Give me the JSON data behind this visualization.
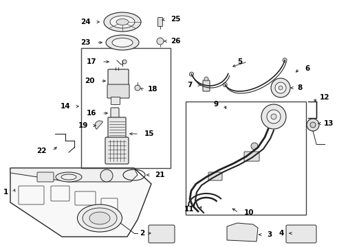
{
  "bg_color": "#ffffff",
  "line_color": "#222222",
  "label_color": "#000000",
  "fig_w": 4.9,
  "fig_h": 3.6,
  "dpi": 100,
  "label_fontsize": 7.5
}
